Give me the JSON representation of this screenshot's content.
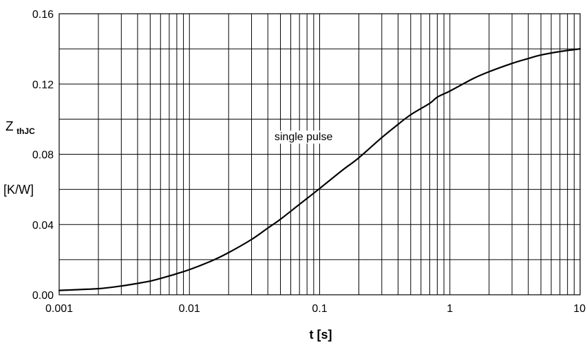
{
  "chart_data": {
    "type": "line",
    "x_scale": "log",
    "y_scale": "linear",
    "xlim": [
      0.001,
      10
    ],
    "ylim": [
      0.0,
      0.16
    ],
    "grid": true,
    "xlabel": "t  [s]",
    "ylabel": {
      "main": "Z",
      "subscript": "thJC",
      "unit": "[K/W]"
    },
    "x_ticks": [
      {
        "value": 0.001,
        "label": "0.001"
      },
      {
        "value": 0.01,
        "label": "0.01"
      },
      {
        "value": 0.1,
        "label": "0.1"
      },
      {
        "value": 1,
        "label": "1"
      },
      {
        "value": 10,
        "label": "10"
      }
    ],
    "y_ticks": [
      {
        "value": 0.0,
        "label": "0.00"
      },
      {
        "value": 0.04,
        "label": "0.04"
      },
      {
        "value": 0.08,
        "label": "0.08"
      },
      {
        "value": 0.12,
        "label": "0.12"
      },
      {
        "value": 0.16,
        "label": "0.16"
      }
    ],
    "y_minor_grid": [
      0.02,
      0.06,
      0.1,
      0.14
    ],
    "annotation": {
      "text": "single pulse",
      "x": 0.045,
      "y": 0.088
    },
    "series": [
      {
        "x": [
          0.001,
          0.002,
          0.003,
          0.004,
          0.005,
          0.006,
          0.007,
          0.008,
          0.01,
          0.015,
          0.02,
          0.03,
          0.04,
          0.05,
          0.07,
          0.1,
          0.15,
          0.2,
          0.3,
          0.4,
          0.5,
          0.7,
          0.8,
          1,
          1.5,
          2,
          3,
          4,
          5,
          7,
          10
        ],
        "y": [
          0.0025,
          0.0035,
          0.005,
          0.0065,
          0.0078,
          0.0093,
          0.0107,
          0.012,
          0.0143,
          0.0195,
          0.024,
          0.0315,
          0.038,
          0.043,
          0.0515,
          0.0605,
          0.071,
          0.078,
          0.0895,
          0.097,
          0.1025,
          0.109,
          0.1125,
          0.116,
          0.123,
          0.127,
          0.1317,
          0.1345,
          0.1365,
          0.1385,
          0.14
        ]
      }
    ]
  }
}
